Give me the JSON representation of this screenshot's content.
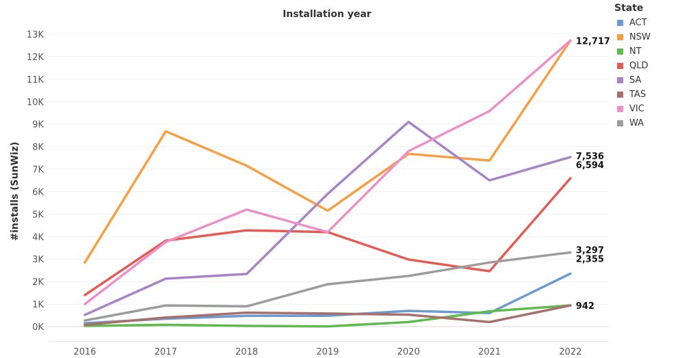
{
  "chart_data": {
    "type": "line",
    "title": "Installation year",
    "ylabel": "#installs (SunWiz)",
    "xlabel": "",
    "categories": [
      "2016",
      "2017",
      "2018",
      "2019",
      "2020",
      "2021",
      "2022"
    ],
    "ylim": [
      0,
      13000
    ],
    "yticks": [
      0,
      1000,
      2000,
      3000,
      4000,
      5000,
      6000,
      7000,
      8000,
      9000,
      10000,
      11000,
      12000,
      13000
    ],
    "ytick_labels": [
      "0K",
      "1K",
      "2K",
      "3K",
      "4K",
      "5K",
      "6K",
      "7K",
      "8K",
      "9K",
      "10K",
      "11K",
      "12K",
      "13K"
    ],
    "grid": true,
    "legend_title": "State",
    "legend_position": "top-right",
    "series": [
      {
        "name": "ACT",
        "color": "#6b9bd0",
        "values": [
          150,
          350,
          480,
          480,
          700,
          600,
          2355
        ],
        "end_label": "2,355"
      },
      {
        "name": "NSW",
        "color": "#f79f45",
        "values": [
          2850,
          8680,
          7150,
          5150,
          7680,
          7380,
          12717
        ],
        "end_label": "12,717"
      },
      {
        "name": "NT",
        "color": "#5fbb4e",
        "values": [
          30,
          80,
          30,
          10,
          200,
          680,
          942
        ],
        "end_label": "942"
      },
      {
        "name": "QLD",
        "color": "#e55b54",
        "values": [
          1400,
          3820,
          4280,
          4200,
          2980,
          2460,
          6594
        ],
        "end_label": "6,594"
      },
      {
        "name": "SA",
        "color": "#a884c6",
        "values": [
          520,
          2130,
          2340,
          5900,
          9100,
          6500,
          7536
        ],
        "end_label": "7,536"
      },
      {
        "name": "TAS",
        "color": "#a8706a",
        "values": [
          80,
          400,
          620,
          580,
          530,
          200,
          942
        ],
        "end_label": ""
      },
      {
        "name": "VIC",
        "color": "#ed8fc9",
        "values": [
          1000,
          3760,
          5200,
          4200,
          7800,
          9580,
          12717
        ],
        "end_label": ""
      },
      {
        "name": "WA",
        "color": "#9c9c9c",
        "values": [
          270,
          940,
          900,
          1880,
          2250,
          2850,
          3297
        ],
        "end_label": "3,297"
      }
    ]
  }
}
